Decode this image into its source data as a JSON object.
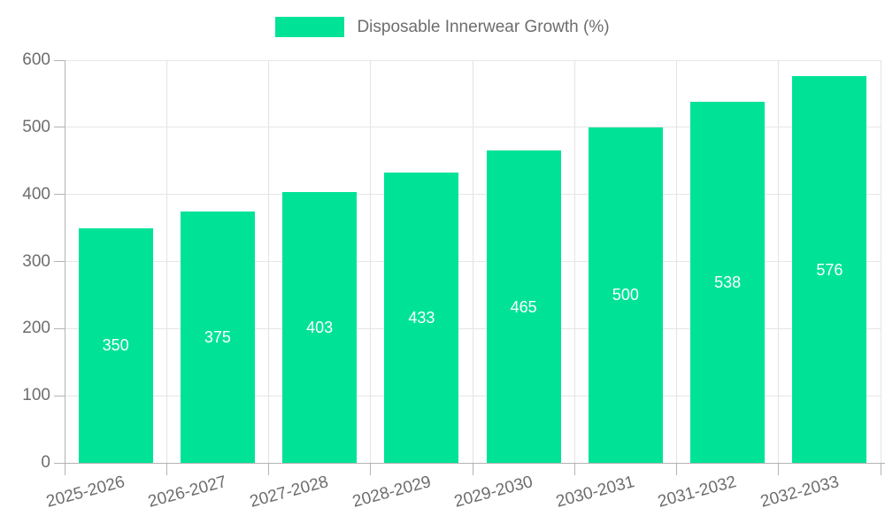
{
  "legend": {
    "items": [
      {
        "label": "Disposable Innerwear Growth (%)",
        "color": "#00e396"
      }
    ]
  },
  "chart_data": {
    "type": "bar",
    "title": "Disposable Innerwear Growth (%)",
    "categories": [
      "2025-2026",
      "2026-2027",
      "2027-2028",
      "2028-2029",
      "2029-2030",
      "2030-2031",
      "2031-2032",
      "2032-2033"
    ],
    "values": [
      350,
      375,
      403,
      433,
      465,
      500,
      538,
      576
    ],
    "xlabel": "",
    "ylabel": "",
    "ylim": [
      0,
      600
    ],
    "yticks": [
      0,
      100,
      200,
      300,
      400,
      500,
      600
    ],
    "bar_color": "#00e396",
    "value_label_color": "#ffffff",
    "grid": true,
    "legend_position": "top",
    "x_label_rotation_deg": -15
  }
}
